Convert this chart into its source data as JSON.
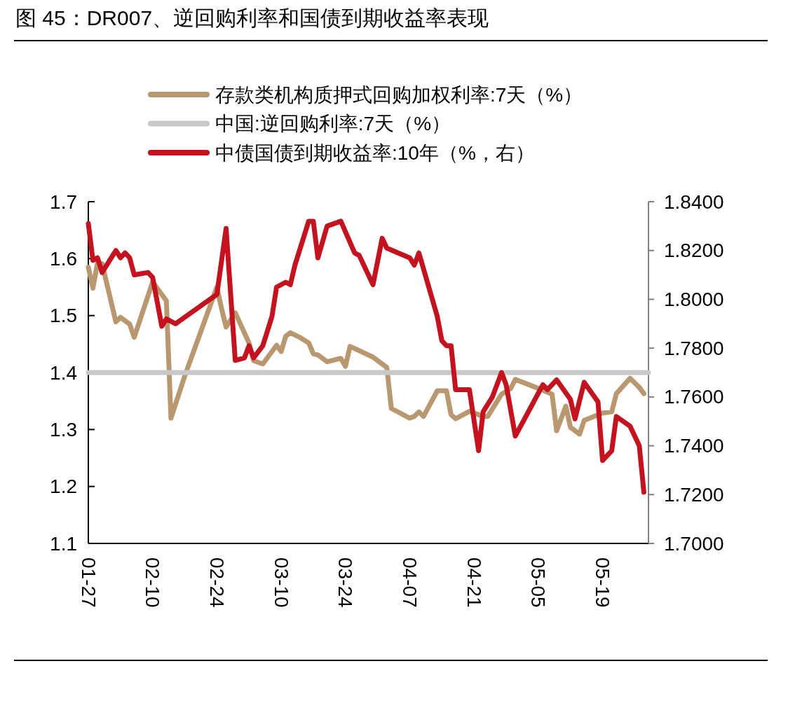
{
  "chart_data": {
    "type": "line",
    "title": "图 45：DR007、逆回购利率和国债到期收益率表现",
    "xlim": [
      "--01-27",
      "--05-29"
    ],
    "xticks": [
      {
        "value": "--01-27",
        "label": "01-27"
      },
      {
        "value": "--02-10",
        "label": "02-10"
      },
      {
        "value": "--02-24",
        "label": "02-24"
      },
      {
        "value": "--03-10",
        "label": "03-10"
      },
      {
        "value": "--03-24",
        "label": "03-24"
      },
      {
        "value": "--04-07",
        "label": "04-07"
      },
      {
        "value": "--04-21",
        "label": "04-21"
      },
      {
        "value": "--05-05",
        "label": "05-05"
      },
      {
        "value": "--05-19",
        "label": "05-19"
      }
    ],
    "ylim": [
      1.1,
      1.7
    ],
    "yticks": [
      1.1,
      1.2,
      1.3,
      1.4,
      1.5,
      1.6,
      1.7
    ],
    "y2lim": [
      1.7,
      1.84
    ],
    "y2ticks": [
      {
        "value": 1.7,
        "label": "1.7000"
      },
      {
        "value": 1.72,
        "label": "1.7200"
      },
      {
        "value": 1.74,
        "label": "1.7400"
      },
      {
        "value": 1.76,
        "label": "1.7600"
      },
      {
        "value": 1.78,
        "label": "1.7800"
      },
      {
        "value": 1.8,
        "label": "1.8000"
      },
      {
        "value": 1.82,
        "label": "1.8200"
      },
      {
        "value": 1.84,
        "label": "1.8400"
      }
    ],
    "legend": "top",
    "grid": false,
    "line_style": "solid",
    "series": [
      {
        "name": "存款类机构质押式回购加权利率:7天（%）",
        "color": "#b99870",
        "x": [
          "--01-27",
          "--01-28",
          "--01-29",
          "--01-30",
          "--02-02",
          "--02-03",
          "--02-05",
          "--02-06",
          "--02-10",
          "--02-13",
          "--02-14",
          "--02-17",
          "--02-24",
          "--02-25",
          "--02-26",
          "--02-28",
          "--03-03",
          "--03-04",
          "--03-06",
          "--03-09",
          "--03-10",
          "--03-11",
          "--03-12",
          "--03-14",
          "--03-16",
          "--03-17",
          "--03-18",
          "--03-20",
          "--03-23",
          "--03-24",
          "--03-25",
          "--03-30",
          "--03-31",
          "--04-02",
          "--04-03",
          "--04-07",
          "--04-08",
          "--04-09",
          "--04-10",
          "--04-13",
          "--04-15",
          "--04-16",
          "--04-17",
          "--04-20",
          "--04-23",
          "--04-24",
          "--04-27",
          "--04-29",
          "--04-30",
          "--05-06",
          "--05-08",
          "--05-09",
          "--05-11",
          "--05-12",
          "--05-14",
          "--05-15",
          "--05-19",
          "--05-21",
          "--05-22",
          "--05-25",
          "--05-27",
          "--05-28"
        ],
        "values": [
          1.585,
          1.548,
          1.593,
          1.591,
          1.489,
          1.497,
          1.485,
          1.462,
          1.559,
          1.526,
          1.32,
          1.394,
          1.55,
          1.513,
          1.48,
          1.505,
          1.452,
          1.421,
          1.415,
          1.448,
          1.437,
          1.464,
          1.47,
          1.462,
          1.452,
          1.433,
          1.431,
          1.419,
          1.425,
          1.411,
          1.446,
          1.427,
          1.421,
          1.409,
          1.337,
          1.32,
          1.323,
          1.331,
          1.323,
          1.368,
          1.368,
          1.326,
          1.319,
          1.332,
          1.323,
          1.323,
          1.362,
          1.372,
          1.388,
          1.369,
          1.362,
          1.298,
          1.341,
          1.304,
          1.292,
          1.316,
          1.329,
          1.331,
          1.363,
          1.39,
          1.374,
          1.363
        ]
      },
      {
        "name": "中国:逆回购利率:7天（%）",
        "color": "#c8c8c8",
        "x": [
          "--01-27",
          "--05-29"
        ],
        "values": [
          1.4,
          1.4
        ]
      },
      {
        "name": "中债国债到期收益率:10年（%，右）",
        "color": "#c4121f",
        "axis": "y2",
        "x": [
          "--01-27",
          "--01-28",
          "--01-29",
          "--01-30",
          "--02-02",
          "--02-03",
          "--02-04",
          "--02-05",
          "--02-06",
          "--02-09",
          "--02-10",
          "--02-12",
          "--02-13",
          "--02-15",
          "--02-24",
          "--02-26",
          "--02-28",
          "--03-02",
          "--03-03",
          "--03-04",
          "--03-06",
          "--03-08",
          "--03-09",
          "--03-10",
          "--03-11",
          "--03-12",
          "--03-13",
          "--03-16",
          "--03-17",
          "--03-18",
          "--03-20",
          "--03-23",
          "--03-26",
          "--03-27",
          "--03-30",
          "--04-01",
          "--04-02",
          "--04-07",
          "--04-08",
          "--04-09",
          "--04-13",
          "--04-14",
          "--04-15",
          "--04-16",
          "--04-17",
          "--04-20",
          "--04-22",
          "--04-23",
          "--04-25",
          "--04-27",
          "--04-28",
          "--04-30",
          "--05-06",
          "--05-07",
          "--05-09",
          "--05-12",
          "--05-13",
          "--05-15",
          "--05-18",
          "--05-19",
          "--05-21",
          "--05-22",
          "--05-25",
          "--05-27",
          "--05-28"
        ],
        "values": [
          1.831,
          1.816,
          1.817,
          1.811,
          1.82,
          1.817,
          1.819,
          1.817,
          1.81,
          1.811,
          1.809,
          1.789,
          1.792,
          1.79,
          1.802,
          1.829,
          1.775,
          1.776,
          1.781,
          1.776,
          1.781,
          1.793,
          1.805,
          1.806,
          1.807,
          1.806,
          1.814,
          1.832,
          1.832,
          1.817,
          1.83,
          1.832,
          1.819,
          1.818,
          1.806,
          1.825,
          1.821,
          1.817,
          1.814,
          1.819,
          1.793,
          1.783,
          1.781,
          1.781,
          1.763,
          1.763,
          1.738,
          1.754,
          1.76,
          1.77,
          1.765,
          1.744,
          1.765,
          1.763,
          1.767,
          1.759,
          1.751,
          1.766,
          1.758,
          1.734,
          1.738,
          1.752,
          1.748,
          1.74,
          1.721
        ]
      }
    ]
  }
}
